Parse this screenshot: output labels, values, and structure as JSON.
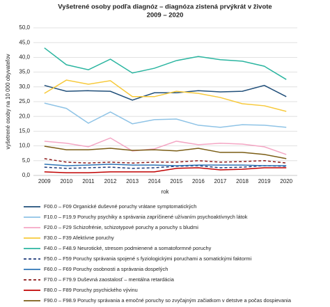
{
  "chart_data": {
    "type": "line",
    "title": "Vyšetrené osoby podľa diagnóz – diagnóza zistená prvýkrát v živote",
    "subtitle": "2009 – 2020",
    "x_label": "rok",
    "y_label": "vyšetrené osoby na 10 000 obyvateľov",
    "categories": [
      "2009",
      "2010",
      "2011",
      "2012",
      "2013",
      "2014",
      "2015",
      "2016",
      "2017",
      "2018",
      "2019",
      "2020"
    ],
    "ylim": [
      0,
      50
    ],
    "yticks": [
      {
        "value": 0,
        "label": "0,0"
      },
      {
        "value": 5,
        "label": "5,0"
      },
      {
        "value": 10,
        "label": "10,0"
      },
      {
        "value": 15,
        "label": "15,0"
      },
      {
        "value": 20,
        "label": "20,0"
      },
      {
        "value": 25,
        "label": "25,0"
      },
      {
        "value": 30,
        "label": "30,0"
      },
      {
        "value": 35,
        "label": "35,0"
      },
      {
        "value": 40,
        "label": "40,0"
      },
      {
        "value": 45,
        "label": "45,0"
      },
      {
        "value": 50,
        "label": "50,0"
      }
    ],
    "grid": true,
    "legend": "bottom",
    "series": [
      {
        "name": "F00.0 – F09 Organické duševné poruchy vrátane symptomatických",
        "color": "#1f4e79",
        "dash": false,
        "values": [
          30.5,
          28.5,
          28.7,
          28.5,
          25.5,
          28,
          28,
          28.7,
          28.3,
          28.5,
          30.5,
          26.7
        ]
      },
      {
        "name": "F10.0 – F19.9 Poruchy psychiky a správania zapríčinené užívaním psychoaktívnych látok",
        "color": "#8ec3e6",
        "dash": false,
        "values": [
          24.5,
          22.7,
          17.7,
          21.5,
          17.5,
          18.9,
          19.1,
          17,
          16.3,
          17.2,
          17,
          16.3
        ]
      },
      {
        "name": "F20.0 – F29 Schizofrénie, schizotypové poruchy a poruchy s bludmi",
        "color": "#f4a6c4",
        "dash": false,
        "values": [
          11.6,
          10.9,
          9.7,
          12.7,
          8.3,
          9,
          11.6,
          10.4,
          10.9,
          10.6,
          9.7,
          7.1
        ]
      },
      {
        "name": "F30.0 – F39 Afektívne poruchy",
        "color": "#f7c93a",
        "dash": false,
        "values": [
          27.8,
          32.3,
          30.9,
          32.1,
          26.7,
          26.7,
          28.5,
          27.8,
          26.4,
          24.3,
          23.6,
          21.7
        ]
      },
      {
        "name": "F40.0 – F48.9 Neurotické, stresom podmienené a somatoformné poruchy",
        "color": "#2bb5a0",
        "dash": false,
        "values": [
          43.2,
          37.5,
          35.8,
          39.4,
          34.7,
          36.3,
          38.9,
          40.3,
          39.2,
          38.7,
          37,
          32.5
        ]
      },
      {
        "name": "F50.0 – F59 Poruchy správania spojené s fyziologickými poruchami a somatickými faktormi",
        "color": "#1f3a7a",
        "dash": true,
        "values": [
          2.8,
          2.4,
          2.6,
          2.8,
          2.4,
          2.6,
          3.1,
          3.3,
          2.6,
          2.8,
          3.3,
          3.1
        ]
      },
      {
        "name": "F60.0 – F69 Poruchy osobnosti a správania dospelých",
        "color": "#2e75b6",
        "dash": false,
        "values": [
          3.8,
          3.3,
          3.5,
          3.8,
          3.5,
          3.5,
          3.3,
          3.5,
          3.5,
          3.5,
          3.3,
          3.3
        ]
      },
      {
        "name": "F70.0 – F79.9 Duševná zaostalosť – mentálna retardácia",
        "color": "#8b1a1a",
        "dash": true,
        "values": [
          5.7,
          4.5,
          4.2,
          4.5,
          4.2,
          4.5,
          4.5,
          5,
          4.5,
          4.7,
          5,
          4.2
        ]
      },
      {
        "name": "F80.0 – F89 Poruchy psychického vývinu",
        "color": "#c00000",
        "dash": false,
        "values": [
          1.2,
          0.9,
          0.9,
          1.2,
          1.2,
          1.2,
          2.4,
          2.6,
          1.9,
          2.1,
          2.6,
          2.6
        ]
      },
      {
        "name": "F90.0 – F98.9 Poruchy správania a emočné poruchy so zvyčajným začiatkom v detstve a počas dospievania",
        "color": "#7a5c14",
        "dash": false,
        "values": [
          9.9,
          8.7,
          8.7,
          9.2,
          8.5,
          8.7,
          8.3,
          9.2,
          7.8,
          7.8,
          7.1,
          5.7
        ]
      }
    ]
  }
}
